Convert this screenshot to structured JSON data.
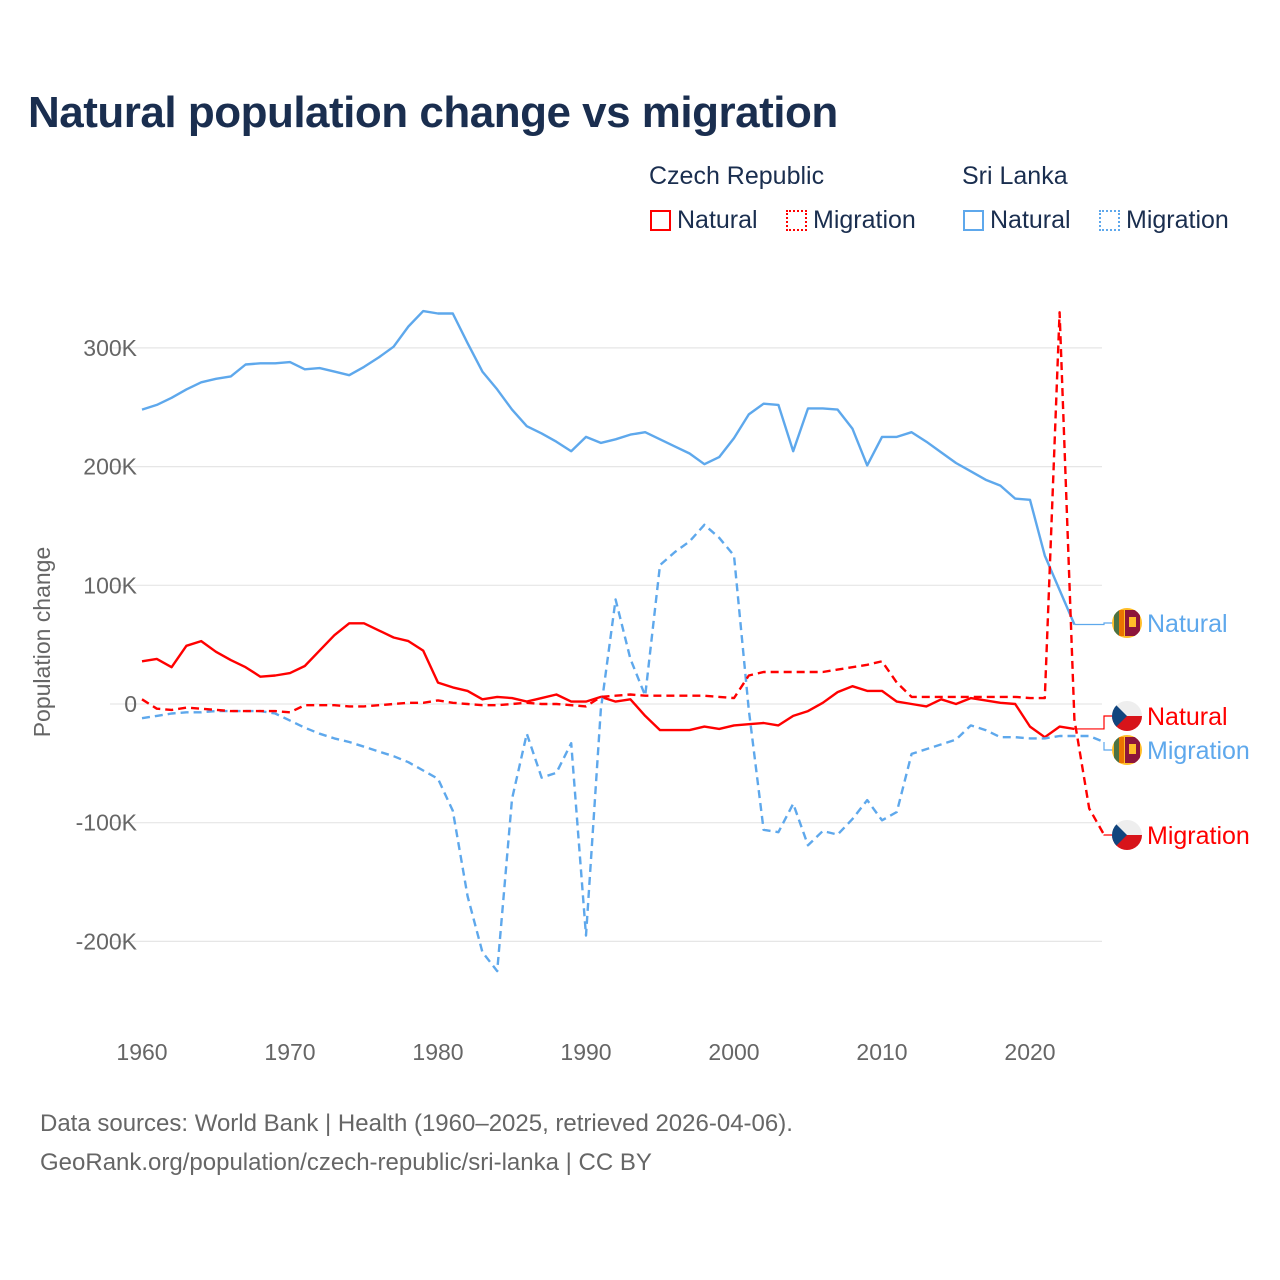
{
  "title": "Natural population change vs migration",
  "legend": {
    "groups": [
      {
        "name": "Czech Republic",
        "items": [
          "Natural",
          "Migration"
        ]
      },
      {
        "name": "Sri Lanka",
        "items": [
          "Natural",
          "Migration"
        ]
      }
    ]
  },
  "colors": {
    "czech": "#ff0000",
    "srilanka": "#5ea8ec",
    "grid": "#e6e6e6",
    "axis_text": "#666666",
    "title": "#1a2e4f"
  },
  "chart_data": {
    "type": "line",
    "title": "Natural population change vs migration",
    "xlabel": "",
    "ylabel": "Population change",
    "xlim": [
      1960,
      2025
    ],
    "ylim": [
      -260000,
      340000
    ],
    "x_ticks": [
      1960,
      1970,
      1980,
      1990,
      2000,
      2010,
      2020
    ],
    "x_tick_labels": [
      "1960",
      "1970",
      "1980",
      "1990",
      "2000",
      "2010",
      "2020"
    ],
    "y_ticks": [
      -200000,
      -100000,
      0,
      100000,
      200000,
      300000
    ],
    "y_tick_labels": [
      "-200K",
      "-100K",
      "0",
      "100K",
      "200K",
      "300K"
    ],
    "grid": true,
    "legend_position": "top-right",
    "start_year": 1960,
    "series": [
      {
        "name": "Sri Lanka Natural",
        "country": "Sri Lanka",
        "label": "Natural",
        "color": "#5ea8ec",
        "dash": "solid",
        "values": [
          248,
          252,
          258,
          265,
          271,
          274,
          276,
          286,
          287,
          287,
          288,
          282,
          283,
          280,
          277,
          284,
          292,
          301,
          318,
          331,
          329,
          329,
          304,
          280,
          265,
          248,
          234,
          228,
          221,
          213,
          225,
          220,
          223,
          227,
          229,
          223,
          217,
          211,
          202,
          208,
          224,
          244,
          253,
          252,
          213,
          249,
          249,
          248,
          232,
          201,
          225,
          225,
          229,
          221,
          212,
          203,
          196,
          189,
          184,
          173,
          172,
          125,
          96,
          67
        ]
      },
      {
        "name": "Czech Republic Natural",
        "country": "Czech Republic",
        "label": "Natural",
        "color": "#ff0000",
        "dash": "solid",
        "values": [
          36,
          38,
          31,
          49,
          53,
          44,
          37,
          31,
          23,
          24,
          26,
          32,
          45,
          58,
          68,
          68,
          62,
          56,
          53,
          45,
          18,
          14,
          11,
          4,
          6,
          5,
          2,
          5,
          8,
          2,
          2,
          6,
          2,
          4,
          -10,
          -22,
          -22,
          -22,
          -19,
          -21,
          -18,
          -17,
          -16,
          -18,
          -10,
          -6,
          1,
          10,
          15,
          11,
          11,
          2,
          0,
          -2,
          4,
          0,
          5,
          3,
          1,
          0,
          -19,
          -28,
          -19,
          -21
        ]
      },
      {
        "name": "Sri Lanka Migration",
        "country": "Sri Lanka",
        "label": "Migration",
        "color": "#5ea8ec",
        "dash": "dashed",
        "values": [
          -12,
          -10,
          -8,
          -7,
          -7,
          -6,
          -6,
          -6,
          -6,
          -8,
          -14,
          -20,
          -25,
          -29,
          -32,
          -36,
          -40,
          -44,
          -49,
          -56,
          -63,
          -90,
          -162,
          -209,
          -225,
          -80,
          -25,
          -62,
          -58,
          -33,
          -195,
          -5,
          88,
          38,
          7,
          117,
          128,
          137,
          151,
          140,
          125,
          -5,
          -106,
          -108,
          -84,
          -119,
          -107,
          -110,
          -97,
          -81,
          -98,
          -91,
          -42,
          -38,
          -34,
          -30,
          -18,
          -22,
          -28,
          -28,
          -29,
          -29,
          -27,
          -27,
          -27,
          -32
        ]
      },
      {
        "name": "Czech Republic Migration",
        "country": "Czech Republic",
        "label": "Migration",
        "color": "#ff0000",
        "dash": "dashed",
        "values": [
          4,
          -4,
          -5,
          -3,
          -4,
          -5,
          -6,
          -6,
          -6,
          -6,
          -7,
          -1,
          -1,
          -1,
          -2,
          -2,
          -1,
          0,
          1,
          1,
          3,
          1,
          0,
          -1,
          -1,
          0,
          1,
          0,
          0,
          -1,
          -2,
          6,
          7,
          8,
          7,
          7,
          7,
          7,
          7,
          6,
          5,
          24,
          27,
          27,
          27,
          27,
          27,
          29,
          31,
          33,
          36,
          18,
          6,
          6,
          6,
          6,
          6,
          6,
          6,
          6,
          5,
          5,
          330,
          -13,
          -88,
          -110
        ]
      }
    ],
    "value_unit": "thousands"
  },
  "footer": {
    "line1": "Data sources: World Bank | Health (1960–2025, retrieved 2026-04-06).",
    "line2": "GeoRank.org/population/czech-republic/sri-lanka | CC BY"
  }
}
